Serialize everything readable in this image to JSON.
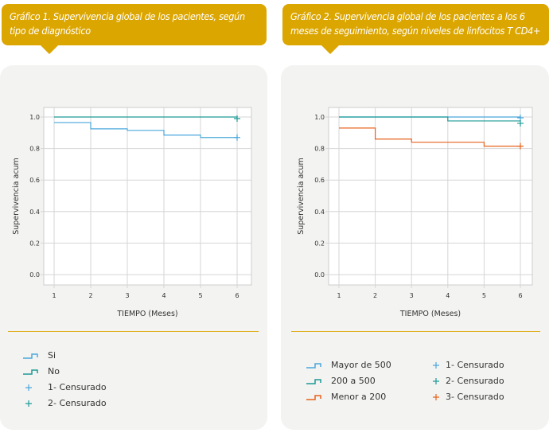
{
  "colors": {
    "banner": "#dca600",
    "blue": "#4aa7dc",
    "teal": "#1e9a96",
    "orange": "#e8621c"
  },
  "chart_data": [
    {
      "type": "line",
      "step": true,
      "title": "Gráfico 1. Supervivencia global de los pacientes, según tipo de diagnóstico",
      "xlabel": "TIEMPO (Meses)",
      "ylabel": "Supervivencia acum",
      "xlim": [
        1,
        6
      ],
      "ylim": [
        0,
        1
      ],
      "xticks": [
        "1",
        "2",
        "3",
        "4",
        "5",
        "6"
      ],
      "yticks": [
        "0.0",
        "0.2",
        "0.4",
        "0.6",
        "0.8",
        "1.0"
      ],
      "grid": true,
      "series": [
        {
          "name": "Si",
          "color": "#4aa7dc",
          "x": [
            1,
            2,
            3,
            4,
            5,
            6
          ],
          "y": [
            0.965,
            0.925,
            0.915,
            0.885,
            0.87,
            0.87
          ],
          "censored": {
            "x": 6,
            "y": 0.87,
            "label": "1- Censurado"
          }
        },
        {
          "name": "No",
          "color": "#1e9a96",
          "x": [
            1,
            6
          ],
          "y": [
            1.0,
            1.0
          ],
          "censored": {
            "x": 6,
            "y": 0.99,
            "label": "2- Censurado"
          }
        }
      ]
    },
    {
      "type": "line",
      "step": true,
      "title": "Gráfico 2. Supervivencia global de los pacientes a los 6 meses de seguimiento, según niveles de linfocitos T CD4+",
      "xlabel": "TIEMPO (Meses)",
      "ylabel": "Supervivencia acum",
      "xlim": [
        1,
        6
      ],
      "ylim": [
        0,
        1
      ],
      "xticks": [
        "1",
        "2",
        "3",
        "4",
        "5",
        "6"
      ],
      "yticks": [
        "0.0",
        "0.2",
        "0.4",
        "0.6",
        "0.8",
        "1.0"
      ],
      "grid": true,
      "series": [
        {
          "name": "Mayor de 500",
          "color": "#4aa7dc",
          "x": [
            1,
            6
          ],
          "y": [
            1.0,
            1.0
          ],
          "censored": {
            "x": 6,
            "y": 0.995,
            "label": "1- Censurado"
          }
        },
        {
          "name": "200 a 500",
          "color": "#1e9a96",
          "x": [
            1,
            4,
            6
          ],
          "y": [
            1.0,
            0.975,
            0.975
          ],
          "censored": {
            "x": 6,
            "y": 0.96,
            "label": "2- Censurado"
          }
        },
        {
          "name": "Menor a 200",
          "color": "#e8621c",
          "x": [
            1,
            2,
            3,
            5,
            6
          ],
          "y": [
            0.93,
            0.86,
            0.84,
            0.815,
            0.815
          ],
          "censored": {
            "x": 6,
            "y": 0.815,
            "label": "3- Censurado"
          }
        }
      ]
    }
  ]
}
